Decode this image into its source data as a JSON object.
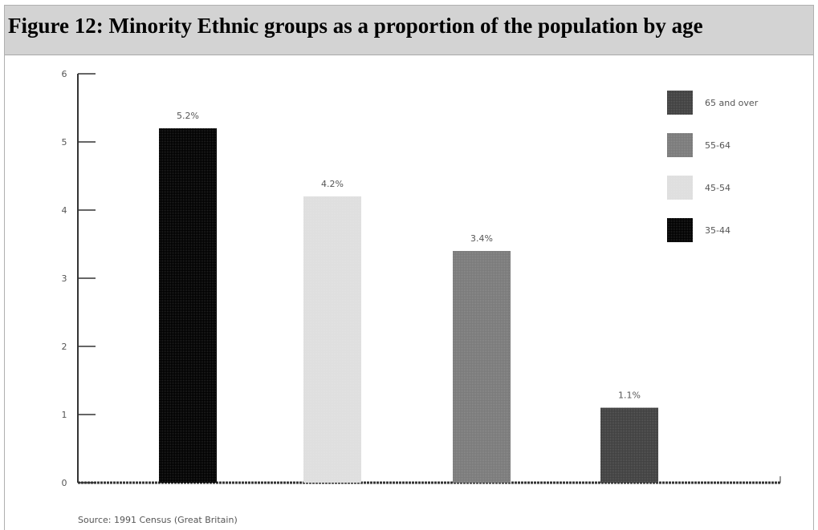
{
  "title": "Figure 12: Minority Ethnic groups as a proportion of the population by age",
  "source": "Source: 1991 Census (Great Britain)",
  "colors": {
    "title_bg": "#d3d3d3",
    "axis": "#333333",
    "dark_grey": "#404040",
    "mid_grey": "#7a7a7a",
    "light_grey": "#dedede",
    "black": "#000000"
  },
  "chart_data": {
    "type": "bar",
    "title": "Figure 12: Minority Ethnic groups as a proportion of the population by age",
    "xlabel": "",
    "ylabel": "",
    "ylim": [
      0,
      6
    ],
    "yticks": [
      "0",
      "1",
      "2",
      "3",
      "4",
      "5",
      "6"
    ],
    "grid": false,
    "legend_position": "top-right",
    "categories": [
      "35-44",
      "45-54",
      "55-64",
      "65 and over"
    ],
    "values": [
      5.2,
      4.2,
      3.4,
      1.1
    ],
    "data_labels": [
      "5.2%",
      "4.2%",
      "3.4%",
      "1.1%"
    ],
    "bar_colors": [
      "#000000",
      "#dedede",
      "#7a7a7a",
      "#404040"
    ],
    "legend": [
      {
        "label": "65 and over",
        "color": "#404040"
      },
      {
        "label": "55-64",
        "color": "#7a7a7a"
      },
      {
        "label": "45-54",
        "color": "#dedede"
      },
      {
        "label": "35-44",
        "color": "#000000"
      }
    ]
  }
}
